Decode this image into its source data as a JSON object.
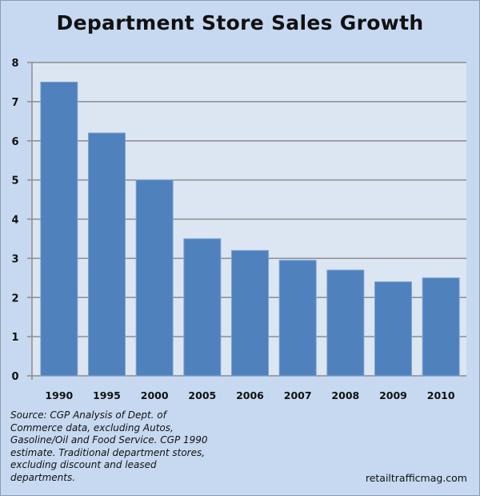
{
  "chart_data": {
    "type": "bar",
    "title": "Department Store Sales Growth",
    "categories": [
      "1990",
      "1995",
      "2000",
      "2005",
      "2006",
      "2007",
      "2008",
      "2009",
      "2010"
    ],
    "values": [
      7.5,
      6.2,
      5.0,
      3.5,
      3.2,
      2.95,
      2.7,
      2.4,
      2.5
    ],
    "xlabel": "",
    "ylabel": "",
    "ylim": [
      0,
      8
    ],
    "yticks": [
      0,
      1,
      2,
      3,
      4,
      5,
      6,
      7,
      8
    ],
    "grid": true,
    "legend": "none",
    "colors": {
      "bar": "#4f81bd",
      "plot_bg": "#dce6f2",
      "page_bg": "#c6d9f0",
      "grid": "#8c8c8c"
    }
  },
  "source_note": "Source: CGP Analysis of Dept. of Commerce data, excluding Autos, Gasoline/Oil and Food Service. CGP 1990 estimate. Traditional department stores, excluding discount and leased departments.",
  "credit": "retailtrafficmag.com"
}
